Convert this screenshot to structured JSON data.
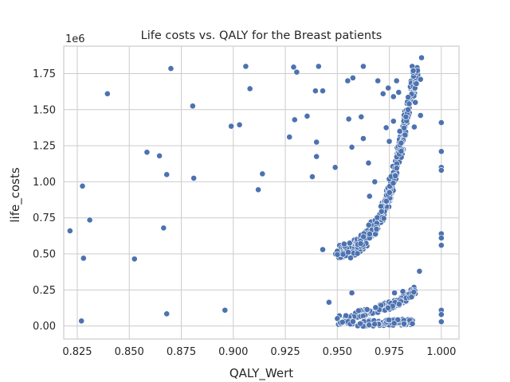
{
  "chart_data": {
    "type": "scatter",
    "title": "Life costs vs. QALY for the Breast patients",
    "xlabel": "QALY_Wert",
    "ylabel": "life_costs",
    "y_offset_label": "1e6",
    "xlim": [
      0.8185,
      1.0085
    ],
    "ylim": [
      -0.09,
      1.94
    ],
    "x_ticks": [
      0.825,
      0.85,
      0.875,
      0.9,
      0.925,
      0.95,
      0.975,
      1.0
    ],
    "x_tick_labels": [
      "0.825",
      "0.850",
      "0.875",
      "0.900",
      "0.925",
      "0.950",
      "0.975",
      "1.000"
    ],
    "y_ticks": [
      0.0,
      0.25,
      0.5,
      0.75,
      1.0,
      1.25,
      1.5,
      1.75
    ],
    "y_tick_labels": [
      "0.00",
      "0.25",
      "0.50",
      "0.75",
      "1.00",
      "1.25",
      "1.50",
      "1.75"
    ],
    "grid": true,
    "marker_color": "#4c72b0",
    "scattered_points": [
      [
        0.8215,
        0.66
      ],
      [
        0.827,
        0.035
      ],
      [
        0.8275,
        0.97
      ],
      [
        0.828,
        0.47
      ],
      [
        0.831,
        0.735
      ],
      [
        0.8395,
        1.61
      ],
      [
        0.8525,
        0.465
      ],
      [
        0.8585,
        1.205
      ],
      [
        0.8645,
        1.18
      ],
      [
        0.8665,
        0.68
      ],
      [
        0.868,
        1.05
      ],
      [
        0.868,
        0.085
      ],
      [
        0.87,
        1.785
      ],
      [
        0.8805,
        1.525
      ],
      [
        0.881,
        1.025
      ],
      [
        0.896,
        0.11
      ],
      [
        0.899,
        1.385
      ],
      [
        0.903,
        1.395
      ],
      [
        0.906,
        1.8
      ],
      [
        0.908,
        1.645
      ],
      [
        0.912,
        0.945
      ],
      [
        0.914,
        1.055
      ],
      [
        0.927,
        1.31
      ],
      [
        0.929,
        1.795
      ],
      [
        0.9295,
        1.43
      ],
      [
        0.9305,
        1.76
      ],
      [
        0.9355,
        1.455
      ],
      [
        0.938,
        1.035
      ],
      [
        0.9395,
        1.63
      ],
      [
        0.94,
        1.275
      ],
      [
        0.94,
        1.175
      ],
      [
        0.941,
        1.8
      ],
      [
        0.943,
        1.63
      ],
      [
        0.943,
        0.53
      ],
      [
        0.946,
        0.165
      ],
      [
        0.949,
        1.1
      ],
      [
        0.955,
        1.7
      ],
      [
        0.9555,
        1.435
      ],
      [
        0.9575,
        1.72
      ],
      [
        0.957,
        1.24
      ],
      [
        0.957,
        0.23
      ],
      [
        0.9615,
        1.45
      ],
      [
        0.9625,
        1.3
      ],
      [
        0.9625,
        1.8
      ],
      [
        0.965,
        1.13
      ],
      [
        0.9655,
        0.9
      ],
      [
        0.9695,
        1.7
      ],
      [
        0.972,
        1.61
      ],
      [
        0.9735,
        1.375
      ],
      [
        0.9745,
        1.65
      ],
      [
        0.977,
        1.42
      ],
      [
        0.977,
        1.59
      ],
      [
        0.9785,
        1.7
      ],
      [
        0.9795,
        1.62
      ],
      [
        0.9775,
        0.23
      ],
      [
        0.9815,
        0.24
      ],
      [
        0.986,
        1.8
      ],
      [
        0.9865,
        1.77
      ],
      [
        0.988,
        1.68
      ],
      [
        0.9905,
        1.86
      ],
      [
        0.99,
        1.71
      ],
      [
        0.9895,
        0.38
      ],
      [
        1.0,
        1.41
      ],
      [
        1.0,
        1.21
      ],
      [
        1.0,
        1.1
      ],
      [
        1.0,
        1.08
      ],
      [
        1.0,
        0.64
      ],
      [
        1.0,
        0.61
      ],
      [
        1.0,
        0.56
      ],
      [
        1.0,
        0.11
      ],
      [
        1.0,
        0.08
      ],
      [
        1.0,
        0.03
      ],
      [
        0.98,
        1.35
      ],
      [
        0.983,
        1.45
      ],
      [
        0.984,
        1.5
      ],
      [
        0.9875,
        1.55
      ],
      [
        0.99,
        1.46
      ],
      [
        0.987,
        1.38
      ],
      [
        0.975,
        1.28
      ],
      [
        0.968,
        1.0
      ]
    ],
    "upper_band": {
      "description_points": [
        [
          0.949,
          0.5
        ],
        [
          0.955,
          0.52
        ],
        [
          0.96,
          0.56
        ],
        [
          0.965,
          0.63
        ],
        [
          0.969,
          0.72
        ],
        [
          0.972,
          0.8
        ],
        [
          0.975,
          0.92
        ],
        [
          0.977,
          1.02
        ],
        [
          0.979,
          1.15
        ],
        [
          0.981,
          1.28
        ],
        [
          0.983,
          1.42
        ],
        [
          0.985,
          1.56
        ],
        [
          0.987,
          1.7
        ],
        [
          0.988,
          1.76
        ]
      ]
    },
    "lower_band": {
      "description_points": [
        [
          0.949,
          0.06
        ],
        [
          0.955,
          0.07
        ],
        [
          0.96,
          0.085
        ],
        [
          0.965,
          0.1
        ],
        [
          0.97,
          0.12
        ],
        [
          0.975,
          0.14
        ],
        [
          0.98,
          0.17
        ],
        [
          0.984,
          0.2
        ],
        [
          0.987,
          0.25
        ]
      ]
    },
    "floor_band": {
      "description_points": [
        [
          0.949,
          0.01
        ],
        [
          0.958,
          0.015
        ],
        [
          0.965,
          0.02
        ],
        [
          0.972,
          0.02
        ],
        [
          0.978,
          0.025
        ],
        [
          0.986,
          0.03
        ]
      ]
    }
  }
}
